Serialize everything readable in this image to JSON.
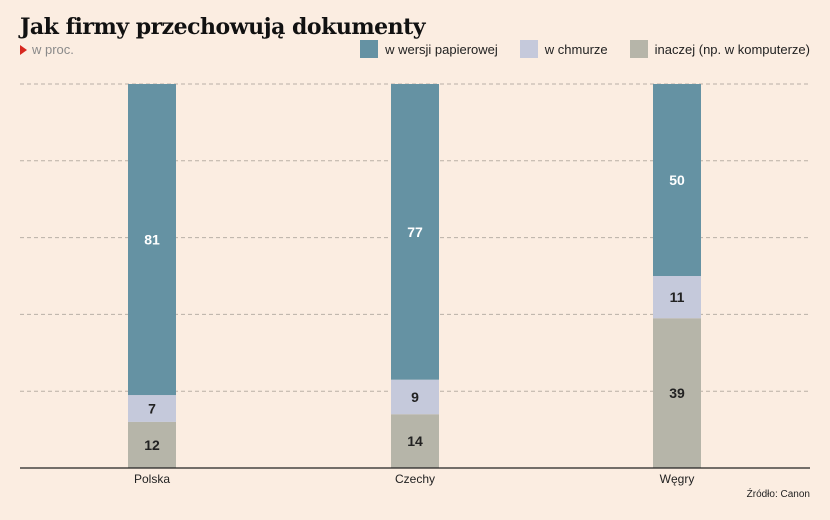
{
  "chart_data": {
    "type": "bar",
    "stacked": true,
    "title": "Jak firmy przechowują dokumenty",
    "subtitle": "w proc.",
    "categories": [
      "Polska",
      "Czechy",
      "Węgry"
    ],
    "series": [
      {
        "name": "inaczej (np. w komputerze)",
        "color": "#b6b5a9",
        "values": [
          12,
          14,
          39
        ]
      },
      {
        "name": "w chmurze",
        "color": "#c5c9db",
        "values": [
          7,
          9,
          11
        ]
      },
      {
        "name": "w wersji papierowej",
        "color": "#6592a3",
        "values": [
          81,
          77,
          50
        ]
      }
    ],
    "legend_order": [
      2,
      1,
      0
    ],
    "ylim": [
      0,
      100
    ],
    "grid": true,
    "legend_position": "top-right",
    "source": "Źródło: Canon"
  }
}
